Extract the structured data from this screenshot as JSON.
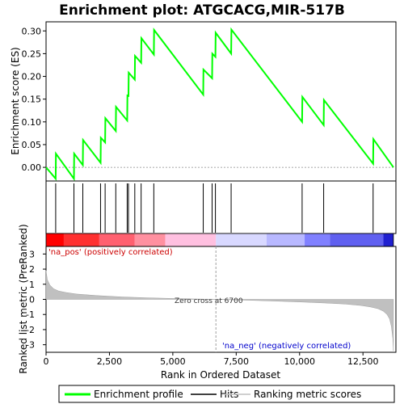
{
  "chart_data": {
    "type": "line",
    "title": "Enrichment plot: ATGCACG,MIR-517B",
    "xlabel": "Rank in Ordered Dataset",
    "ylabel_top": "Enrichment score (ES)",
    "ylabel_bottom": "Ranked list metric (PreRanked)",
    "x_ticks": [
      0,
      2500,
      5000,
      7500,
      10000,
      12500
    ],
    "x_tick_labels": [
      "0",
      "2,500",
      "5,000",
      "7,500",
      "10,000",
      "12,500"
    ],
    "xlim": [
      0,
      13800
    ],
    "es_ylim": [
      -0.03,
      0.32
    ],
    "es_ticks": [
      0.0,
      0.05,
      0.1,
      0.15,
      0.2,
      0.25,
      0.3
    ],
    "es_tick_labels": [
      "0.00",
      "0.05",
      "0.10",
      "0.15",
      "0.20",
      "0.25",
      "0.30"
    ],
    "metric_ylim": [
      -3.5,
      3.5
    ],
    "metric_ticks": [
      3,
      2,
      1,
      0,
      -1,
      -2,
      -3
    ],
    "metric_tick_labels": [
      "3",
      "2",
      "1",
      "0",
      "-1",
      "-2",
      "-3"
    ],
    "n_genes": 13700,
    "zero_cross": 6700,
    "annotations": {
      "pos_label": "'na_pos' (positively correlated)",
      "neg_label": "'na_neg' (negatively correlated)",
      "zero_label": "Zero cross at 6700"
    },
    "legend": {
      "placement": "bottom",
      "items": [
        "Enrichment profile",
        "Hits",
        "Ranking metric scores"
      ]
    },
    "colors": {
      "es_line": "#00ff00",
      "hits": "#000000",
      "metric": "#c0c0c0",
      "pos_band": "#ff0000",
      "neg_band": "#0000ff"
    },
    "es_profile": {
      "x": [
        0,
        380,
        390,
        1100,
        1110,
        1450,
        1460,
        2150,
        2160,
        2330,
        2340,
        2750,
        2760,
        3200,
        3210,
        3250,
        3260,
        3500,
        3510,
        3750,
        3760,
        4250,
        4260,
        6200,
        6210,
        6550,
        6560,
        6680,
        6690,
        7300,
        7310,
        10100,
        10110,
        10950,
        10960,
        12900,
        12910,
        13700
      ],
      "y": [
        0.0,
        -0.025,
        0.03,
        -0.025,
        0.03,
        0.005,
        0.06,
        0.01,
        0.065,
        0.055,
        0.108,
        0.08,
        0.133,
        0.103,
        0.158,
        0.157,
        0.208,
        0.193,
        0.245,
        0.23,
        0.284,
        0.248,
        0.302,
        0.16,
        0.215,
        0.196,
        0.25,
        0.243,
        0.296,
        0.25,
        0.303,
        0.1,
        0.155,
        0.093,
        0.148,
        0.008,
        0.062,
        0.0
      ]
    },
    "hits": [
      380,
      1100,
      1450,
      2150,
      2330,
      2750,
      3200,
      3250,
      3500,
      3750,
      4250,
      6200,
      6550,
      6680,
      7300,
      10100,
      10950,
      12900
    ],
    "metric": {
      "x": [
        0,
        50,
        150,
        300,
        500,
        800,
        1200,
        2000,
        3000,
        4000,
        5000,
        6000,
        6700,
        8000,
        9000,
        10000,
        11000,
        11800,
        12400,
        12800,
        13100,
        13300,
        13450,
        13550,
        13620,
        13680,
        13700
      ],
      "y": [
        1.9,
        1.3,
        0.95,
        0.7,
        0.55,
        0.45,
        0.35,
        0.25,
        0.16,
        0.1,
        0.06,
        0.02,
        0.0,
        -0.06,
        -0.11,
        -0.17,
        -0.24,
        -0.31,
        -0.4,
        -0.5,
        -0.62,
        -0.78,
        -1.0,
        -1.3,
        -1.8,
        -2.6,
        -3.4
      ]
    }
  }
}
